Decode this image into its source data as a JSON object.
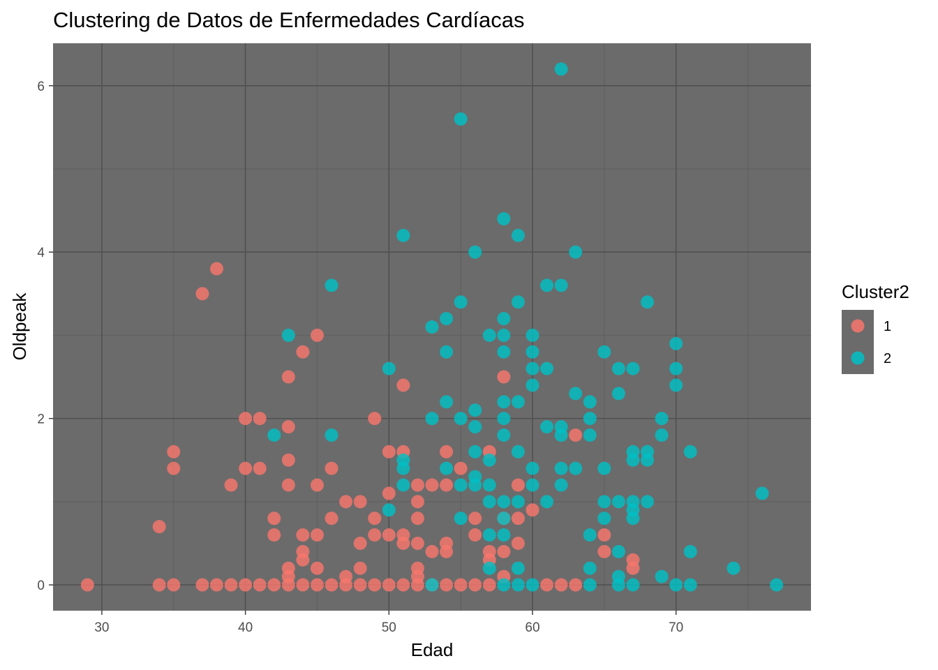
{
  "chart_data": {
    "type": "scatter",
    "title": "Clustering de Datos de Enfermedades Cardíacas",
    "xlabel": "Edad",
    "ylabel": "Oldpeak",
    "xlim": [
      26.6,
      79.4
    ],
    "ylim": [
      -0.31,
      6.51
    ],
    "xticks": [
      30,
      40,
      50,
      60,
      70
    ],
    "yticks": [
      0,
      2,
      4,
      6
    ],
    "grid": true,
    "legend": {
      "title": "Cluster2",
      "position": "right"
    },
    "series": [
      {
        "name": "1",
        "color": "#f8766d",
        "points": [
          [
            29,
            0
          ],
          [
            34,
            0
          ],
          [
            34,
            0.7
          ],
          [
            35,
            0
          ],
          [
            35,
            1.4
          ],
          [
            35,
            1.6
          ],
          [
            37,
            0
          ],
          [
            37,
            3.5
          ],
          [
            38,
            0
          ],
          [
            38,
            3.8
          ],
          [
            39,
            0
          ],
          [
            39,
            1.2
          ],
          [
            40,
            0
          ],
          [
            40,
            1.4
          ],
          [
            40,
            2
          ],
          [
            41,
            0
          ],
          [
            41,
            1.4
          ],
          [
            41,
            2
          ],
          [
            42,
            0
          ],
          [
            42,
            0.6
          ],
          [
            42,
            0.8
          ],
          [
            43,
            0
          ],
          [
            43,
            0.1
          ],
          [
            43,
            0.2
          ],
          [
            43,
            1.2
          ],
          [
            43,
            1.5
          ],
          [
            43,
            1.9
          ],
          [
            43,
            2.5
          ],
          [
            44,
            0
          ],
          [
            44,
            0.3
          ],
          [
            44,
            0.4
          ],
          [
            44,
            0.6
          ],
          [
            44,
            2.8
          ],
          [
            45,
            0
          ],
          [
            45,
            0.2
          ],
          [
            45,
            0.6
          ],
          [
            45,
            1.2
          ],
          [
            45,
            3
          ],
          [
            46,
            0
          ],
          [
            46,
            0.8
          ],
          [
            46,
            1.4
          ],
          [
            47,
            0
          ],
          [
            47,
            0.1
          ],
          [
            47,
            1
          ],
          [
            48,
            0
          ],
          [
            48,
            0.2
          ],
          [
            48,
            0.5
          ],
          [
            48,
            1
          ],
          [
            49,
            0
          ],
          [
            49,
            0.6
          ],
          [
            49,
            0.8
          ],
          [
            49,
            2
          ],
          [
            50,
            0
          ],
          [
            50,
            0.6
          ],
          [
            50,
            1.1
          ],
          [
            50,
            1.6
          ],
          [
            51,
            0
          ],
          [
            51,
            0.5
          ],
          [
            51,
            0.6
          ],
          [
            51,
            1.6
          ],
          [
            51,
            2.4
          ],
          [
            52,
            0
          ],
          [
            52,
            0.1
          ],
          [
            52,
            0.2
          ],
          [
            52,
            0.5
          ],
          [
            52,
            0.8
          ],
          [
            52,
            1
          ],
          [
            52,
            1.2
          ],
          [
            53,
            0
          ],
          [
            53,
            0.4
          ],
          [
            53,
            1.2
          ],
          [
            54,
            0
          ],
          [
            54,
            0.4
          ],
          [
            54,
            0.5
          ],
          [
            54,
            1.2
          ],
          [
            54,
            1.6
          ],
          [
            55,
            0
          ],
          [
            55,
            1.4
          ],
          [
            56,
            0
          ],
          [
            56,
            0.6
          ],
          [
            56,
            0.8
          ],
          [
            57,
            0
          ],
          [
            57,
            0.3
          ],
          [
            57,
            0.4
          ],
          [
            57,
            1.6
          ],
          [
            58,
            0.1
          ],
          [
            58,
            0.4
          ],
          [
            58,
            0.8
          ],
          [
            58,
            2.5
          ],
          [
            59,
            0.5
          ],
          [
            59,
            0.8
          ],
          [
            59,
            1.2
          ],
          [
            60,
            0.9
          ],
          [
            61,
            0
          ],
          [
            62,
            0
          ],
          [
            63,
            0
          ],
          [
            63,
            1.8
          ],
          [
            65,
            0.4
          ],
          [
            65,
            0.6
          ],
          [
            67,
            0.2
          ],
          [
            67,
            0.3
          ]
        ]
      },
      {
        "name": "2",
        "color": "#00bfc4",
        "points": [
          [
            42,
            1.8
          ],
          [
            43,
            3
          ],
          [
            46,
            1.8
          ],
          [
            46,
            3.6
          ],
          [
            50,
            0.9
          ],
          [
            50,
            2.6
          ],
          [
            51,
            1.2
          ],
          [
            51,
            1.4
          ],
          [
            51,
            1.5
          ],
          [
            51,
            4.2
          ],
          [
            53,
            0
          ],
          [
            53,
            2
          ],
          [
            53,
            3.1
          ],
          [
            54,
            1.4
          ],
          [
            54,
            2.2
          ],
          [
            54,
            2.8
          ],
          [
            54,
            3.2
          ],
          [
            55,
            0.8
          ],
          [
            55,
            1.2
          ],
          [
            55,
            2
          ],
          [
            55,
            3.4
          ],
          [
            55,
            5.6
          ],
          [
            56,
            1.2
          ],
          [
            56,
            1.3
          ],
          [
            56,
            1.6
          ],
          [
            56,
            1.9
          ],
          [
            56,
            2.1
          ],
          [
            56,
            4
          ],
          [
            57,
            0.2
          ],
          [
            57,
            0.6
          ],
          [
            57,
            1
          ],
          [
            57,
            1.2
          ],
          [
            57,
            1.5
          ],
          [
            57,
            3
          ],
          [
            58,
            0
          ],
          [
            58,
            0.6
          ],
          [
            58,
            0.8
          ],
          [
            58,
            1
          ],
          [
            58,
            1.8
          ],
          [
            58,
            2
          ],
          [
            58,
            2.2
          ],
          [
            58,
            2.8
          ],
          [
            58,
            3
          ],
          [
            58,
            3.2
          ],
          [
            58,
            4.4
          ],
          [
            59,
            0
          ],
          [
            59,
            0.2
          ],
          [
            59,
            1
          ],
          [
            59,
            1.6
          ],
          [
            59,
            2.2
          ],
          [
            59,
            3.4
          ],
          [
            59,
            4.2
          ],
          [
            60,
            0
          ],
          [
            60,
            1.2
          ],
          [
            60,
            1.4
          ],
          [
            60,
            2.4
          ],
          [
            60,
            2.6
          ],
          [
            60,
            2.8
          ],
          [
            60,
            3
          ],
          [
            61,
            1
          ],
          [
            61,
            1.9
          ],
          [
            61,
            2.6
          ],
          [
            61,
            3.6
          ],
          [
            62,
            1.2
          ],
          [
            62,
            1.4
          ],
          [
            62,
            1.8
          ],
          [
            62,
            1.9
          ],
          [
            62,
            3.6
          ],
          [
            62,
            6.2
          ],
          [
            63,
            1.4
          ],
          [
            63,
            2.3
          ],
          [
            63,
            4
          ],
          [
            64,
            0
          ],
          [
            64,
            0.2
          ],
          [
            64,
            0.6
          ],
          [
            64,
            1.8
          ],
          [
            64,
            2
          ],
          [
            64,
            2.2
          ],
          [
            65,
            0.8
          ],
          [
            65,
            1
          ],
          [
            65,
            1.4
          ],
          [
            65,
            2.8
          ],
          [
            66,
            0
          ],
          [
            66,
            0.1
          ],
          [
            66,
            0.4
          ],
          [
            66,
            1
          ],
          [
            66,
            2.3
          ],
          [
            66,
            2.6
          ],
          [
            67,
            0
          ],
          [
            67,
            0.8
          ],
          [
            67,
            0.9
          ],
          [
            67,
            1
          ],
          [
            67,
            1.5
          ],
          [
            67,
            1.6
          ],
          [
            67,
            2.6
          ],
          [
            68,
            1
          ],
          [
            68,
            1.5
          ],
          [
            68,
            1.6
          ],
          [
            68,
            3.4
          ],
          [
            69,
            0.1
          ],
          [
            69,
            1.8
          ],
          [
            69,
            2
          ],
          [
            70,
            0
          ],
          [
            70,
            2.4
          ],
          [
            70,
            2.6
          ],
          [
            70,
            2.9
          ],
          [
            71,
            0
          ],
          [
            71,
            0.4
          ],
          [
            71,
            1.6
          ],
          [
            74,
            0.2
          ],
          [
            76,
            1.1
          ],
          [
            77,
            0
          ]
        ]
      }
    ]
  }
}
